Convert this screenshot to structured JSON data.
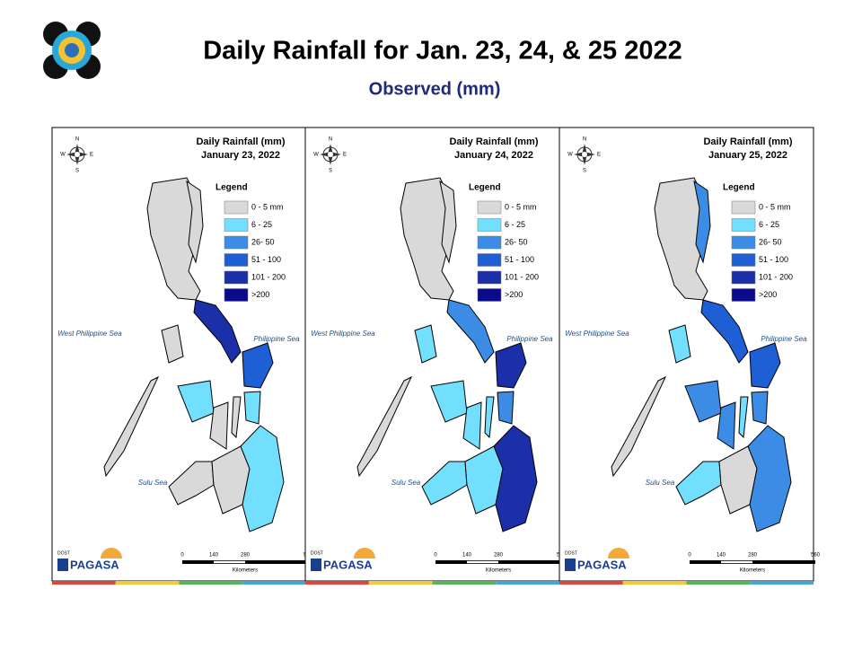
{
  "header": {
    "title": "Daily Rainfall for Jan. 23, 24, & 25 2022",
    "subtitle": "Observed (mm)"
  },
  "panels": [
    {
      "title": "Daily Rainfall (mm)",
      "date": "January 23, 2022"
    },
    {
      "title": "Daily Rainfall (mm)",
      "date": "January 24, 2022"
    },
    {
      "title": "Daily Rainfall (mm)",
      "date": "January 25, 2022"
    }
  ],
  "legend": {
    "title": "Legend",
    "items": [
      {
        "label": "0 - 5 mm",
        "color": "#d9d9d9"
      },
      {
        "label": "6 - 25",
        "color": "#73dfff"
      },
      {
        "label": "26- 50",
        "color": "#3c8ce6"
      },
      {
        "label": "51 - 100",
        "color": "#1f5fd6"
      },
      {
        "label": "101 - 200",
        "color": "#1b2fa8"
      },
      {
        "label": ">200",
        "color": "#0a0a8a"
      }
    ]
  },
  "seas": {
    "west": "West Philippine Sea",
    "east": "Philippine Sea",
    "south": "Sulu Sea"
  },
  "compass": {
    "n": "N",
    "e": "E",
    "s": "S",
    "w": "W"
  },
  "scale": {
    "ticks": [
      "0",
      "140",
      "280",
      "560"
    ],
    "unit": "Kilometers"
  },
  "logo": {
    "org": "DOST",
    "name": "PAGASA"
  }
}
